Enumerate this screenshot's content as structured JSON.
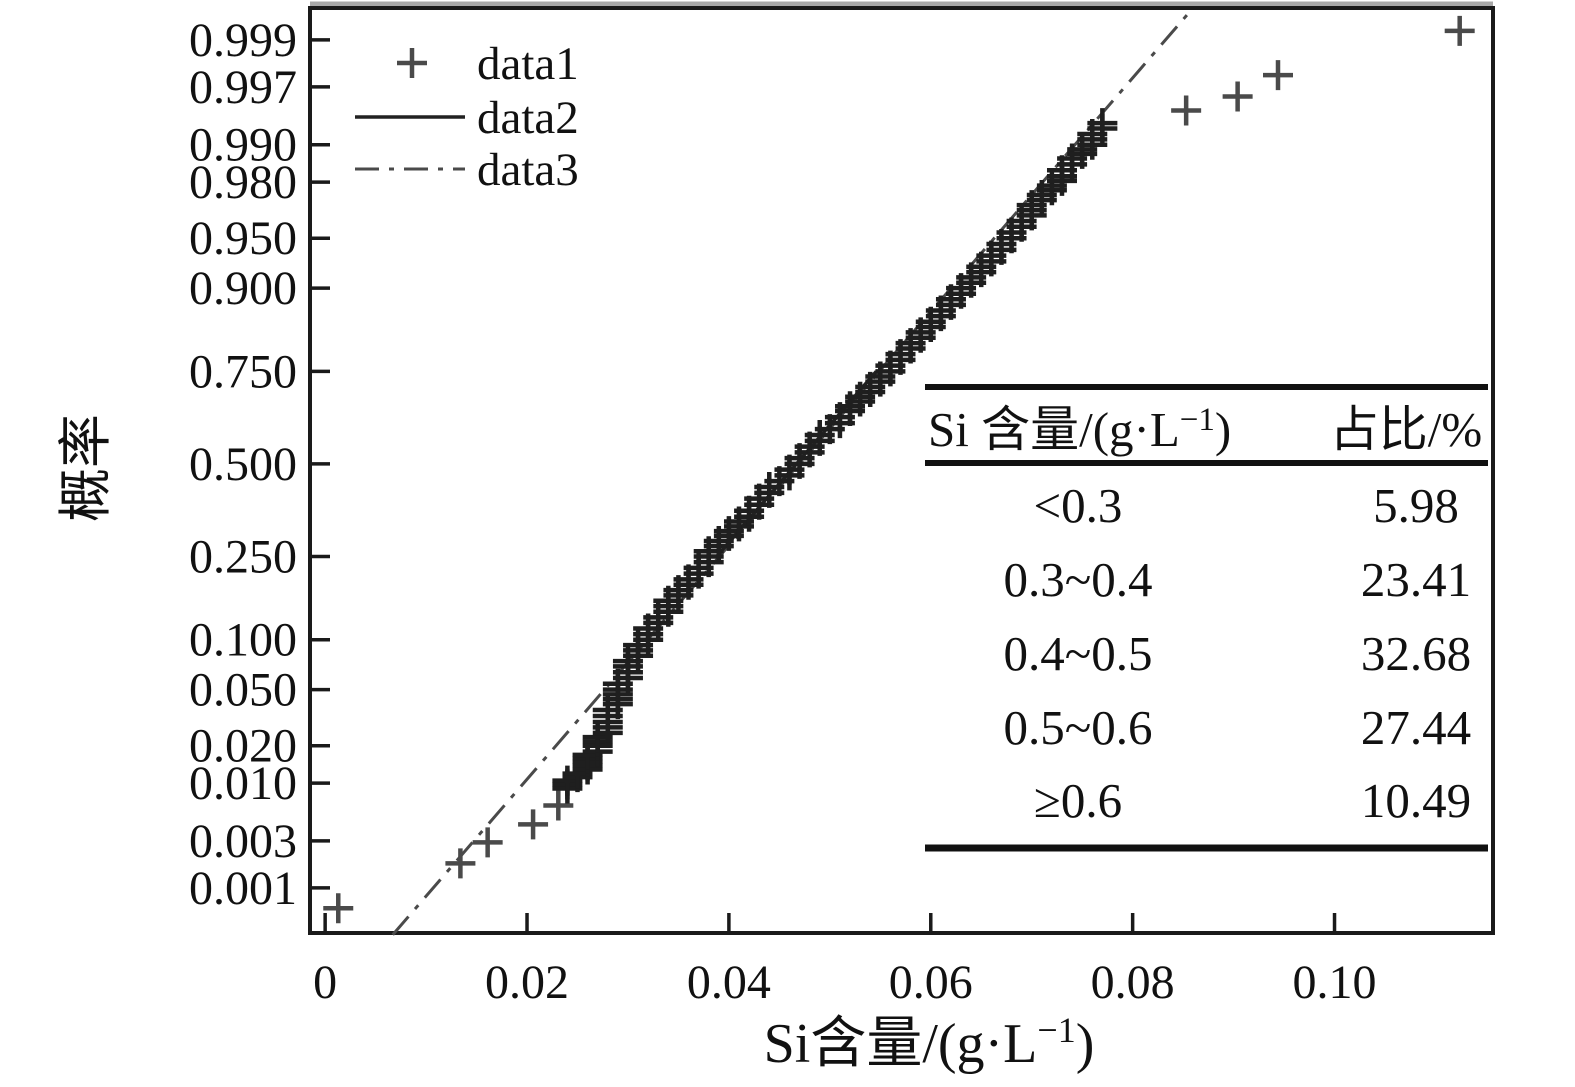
{
  "figure": {
    "background": "#ffffff",
    "text_color": "#111111",
    "axis_color": "#1a1a1a",
    "marker_color": "#4a4a4a",
    "band_color": "#1f1f1f",
    "solid_line_color": "#222222",
    "dashdot_line_color": "#4a4a4a"
  },
  "legend": {
    "entries": [
      {
        "label": "data1",
        "symbol": "plus-marker"
      },
      {
        "label": "data2",
        "symbol": "solid-line"
      },
      {
        "label": "data3",
        "symbol": "dashdot-line"
      }
    ]
  },
  "axes": {
    "ylabel": "概率",
    "xlabel_pre": "Si含量/(g·L",
    "xlabel_sup": "−1",
    "xlabel_post": ")"
  },
  "table": {
    "header_col1_pre": "Si 含量/(g·L",
    "header_col1_sup": "−1",
    "header_col1_post": ")",
    "header_col2": "占比/%",
    "rows": [
      {
        "range": "<0.3",
        "pct": "5.98"
      },
      {
        "range": "0.3~0.4",
        "pct": "23.41"
      },
      {
        "range": "0.4~0.5",
        "pct": "32.68"
      },
      {
        "range": "0.5~0.6",
        "pct": "27.44"
      },
      {
        "range": "≥0.6",
        "pct": "10.49"
      }
    ]
  },
  "chart_data": {
    "type": "scatter",
    "subtype": "normal-probability-plot",
    "title": "",
    "xlabel": "Si含量/(g·L−1)",
    "ylabel": "概率 (probability)",
    "grid": false,
    "legend_position": "top-left-inside",
    "xlim": [
      -0.0015,
      0.1157
    ],
    "zlim": [
      -3.419,
      3.323
    ],
    "x_ticks": [
      0,
      0.02,
      0.04,
      0.06,
      0.08,
      0.1
    ],
    "x_tick_labels": [
      "0",
      "0.02",
      "0.04",
      "0.06",
      "0.08",
      "0.10"
    ],
    "y_tick_probs": [
      0.999,
      0.997,
      0.99,
      0.98,
      0.95,
      0.9,
      0.75,
      0.5,
      0.25,
      0.1,
      0.05,
      0.02,
      0.01,
      0.003,
      0.001
    ],
    "y_tick_labels": [
      "0.999",
      "0.997",
      "0.990",
      "0.980",
      "0.950",
      "0.900",
      "0.750",
      "0.500",
      "0.250",
      "0.100",
      "0.050",
      "0.020",
      "0.010",
      "0.003",
      "0.001"
    ],
    "series": [
      {
        "name": "data1",
        "type": "scatter",
        "marker": "plus",
        "points_xp": [
          [
            0.0013,
            0.0006
          ],
          [
            0.0134,
            0.0018
          ],
          [
            0.0161,
            0.0029
          ],
          [
            0.0206,
            0.0043
          ],
          [
            0.0231,
            0.0064
          ],
          [
            0.0238,
            0.009
          ],
          [
            0.0243,
            0.0105
          ],
          [
            0.0253,
            0.012
          ],
          [
            0.0258,
            0.014
          ],
          [
            0.0262,
            0.016
          ],
          [
            0.0266,
            0.018
          ],
          [
            0.027,
            0.02
          ],
          [
            0.0275,
            0.025
          ],
          [
            0.028,
            0.03
          ],
          [
            0.0285,
            0.04
          ],
          [
            0.029,
            0.05
          ],
          [
            0.0302,
            0.07
          ],
          [
            0.0315,
            0.1
          ],
          [
            0.034,
            0.15
          ],
          [
            0.0362,
            0.2
          ],
          [
            0.038,
            0.25
          ],
          [
            0.0397,
            0.3
          ],
          [
            0.0417,
            0.35
          ],
          [
            0.0432,
            0.4
          ],
          [
            0.045,
            0.45
          ],
          [
            0.0465,
            0.5
          ],
          [
            0.0483,
            0.55
          ],
          [
            0.05,
            0.6
          ],
          [
            0.0517,
            0.65
          ],
          [
            0.0535,
            0.7
          ],
          [
            0.0555,
            0.75
          ],
          [
            0.0577,
            0.8
          ],
          [
            0.06,
            0.85
          ],
          [
            0.0633,
            0.9
          ],
          [
            0.0655,
            0.93
          ],
          [
            0.0677,
            0.95
          ],
          [
            0.0695,
            0.965
          ],
          [
            0.0715,
            0.975
          ],
          [
            0.073,
            0.982
          ],
          [
            0.0744,
            0.987
          ],
          [
            0.0755,
            0.99
          ],
          [
            0.077,
            0.9935
          ],
          [
            0.0853,
            0.995
          ],
          [
            0.0904,
            0.9963
          ],
          [
            0.0944,
            0.9977
          ],
          [
            0.1124,
            0.9992
          ]
        ],
        "overplot_band": {
          "p_min": 0.008,
          "p_max": 0.994,
          "dz_step": 0.045,
          "x_quantum": 0.001
        }
      },
      {
        "name": "data2",
        "type": "line",
        "style": "solid",
        "points_xp": [
          [
            0.0388,
            0.25
          ],
          [
            0.0546,
            0.75
          ]
        ]
      },
      {
        "name": "data3",
        "type": "line",
        "style": "dashdot",
        "fit_mu": 0.0467,
        "fit_sigma": 0.0117,
        "points_xp": [
          [
            0.0067,
            0.0003
          ],
          [
            0.0856,
            0.9995
          ]
        ]
      }
    ]
  }
}
